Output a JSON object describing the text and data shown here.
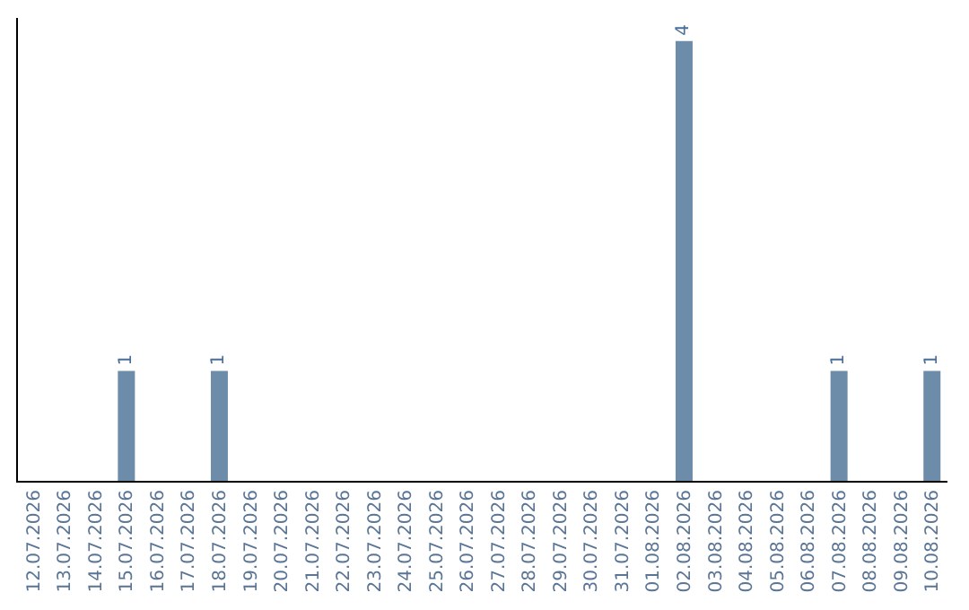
{
  "chart_data": {
    "type": "bar",
    "categories": [
      "12.07.2026",
      "13.07.2026",
      "14.07.2026",
      "15.07.2026",
      "16.07.2026",
      "17.07.2026",
      "18.07.2026",
      "19.07.2026",
      "20.07.2026",
      "21.07.2026",
      "22.07.2026",
      "23.07.2026",
      "24.07.2026",
      "25.07.2026",
      "26.07.2026",
      "27.07.2026",
      "28.07.2026",
      "29.07.2026",
      "30.07.2026",
      "31.07.2026",
      "01.08.2026",
      "02.08.2026",
      "03.08.2026",
      "04.08.2026",
      "05.08.2026",
      "06.08.2026",
      "07.08.2026",
      "08.08.2026",
      "09.08.2026",
      "10.08.2026"
    ],
    "values": [
      0,
      0,
      0,
      1,
      0,
      0,
      1,
      0,
      0,
      0,
      0,
      0,
      0,
      0,
      0,
      0,
      0,
      0,
      0,
      0,
      0,
      4,
      0,
      0,
      0,
      0,
      1,
      0,
      0,
      1
    ],
    "value_labels": [
      null,
      null,
      null,
      "1",
      null,
      null,
      "1",
      null,
      null,
      null,
      null,
      null,
      null,
      null,
      null,
      null,
      null,
      null,
      null,
      null,
      null,
      "4",
      null,
      null,
      null,
      null,
      "1",
      null,
      null,
      "1"
    ],
    "color": "#6d8caa",
    "grid": false,
    "legend": false,
    "tick_labels": "x"
  }
}
